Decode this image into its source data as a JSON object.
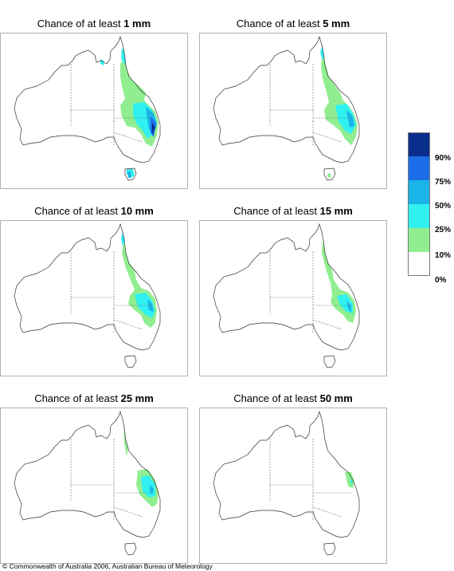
{
  "title_prefix": "Chance of at least",
  "panels": [
    {
      "threshold": "1 mm"
    },
    {
      "threshold": "5 mm"
    },
    {
      "threshold": "10 mm"
    },
    {
      "threshold": "15 mm"
    },
    {
      "threshold": "25 mm"
    },
    {
      "threshold": "50 mm"
    }
  ],
  "legend": {
    "colors": [
      "#0a2e8c",
      "#1c6ee8",
      "#1ab4e8",
      "#30f0f0",
      "#90ee90",
      "#ffffff"
    ],
    "labels": [
      "90%",
      "75%",
      "50%",
      "25%",
      "10%",
      "0%"
    ]
  },
  "copyright": "© Commonwealth of Australia 2006, Australian Bureau of Meteorology"
}
